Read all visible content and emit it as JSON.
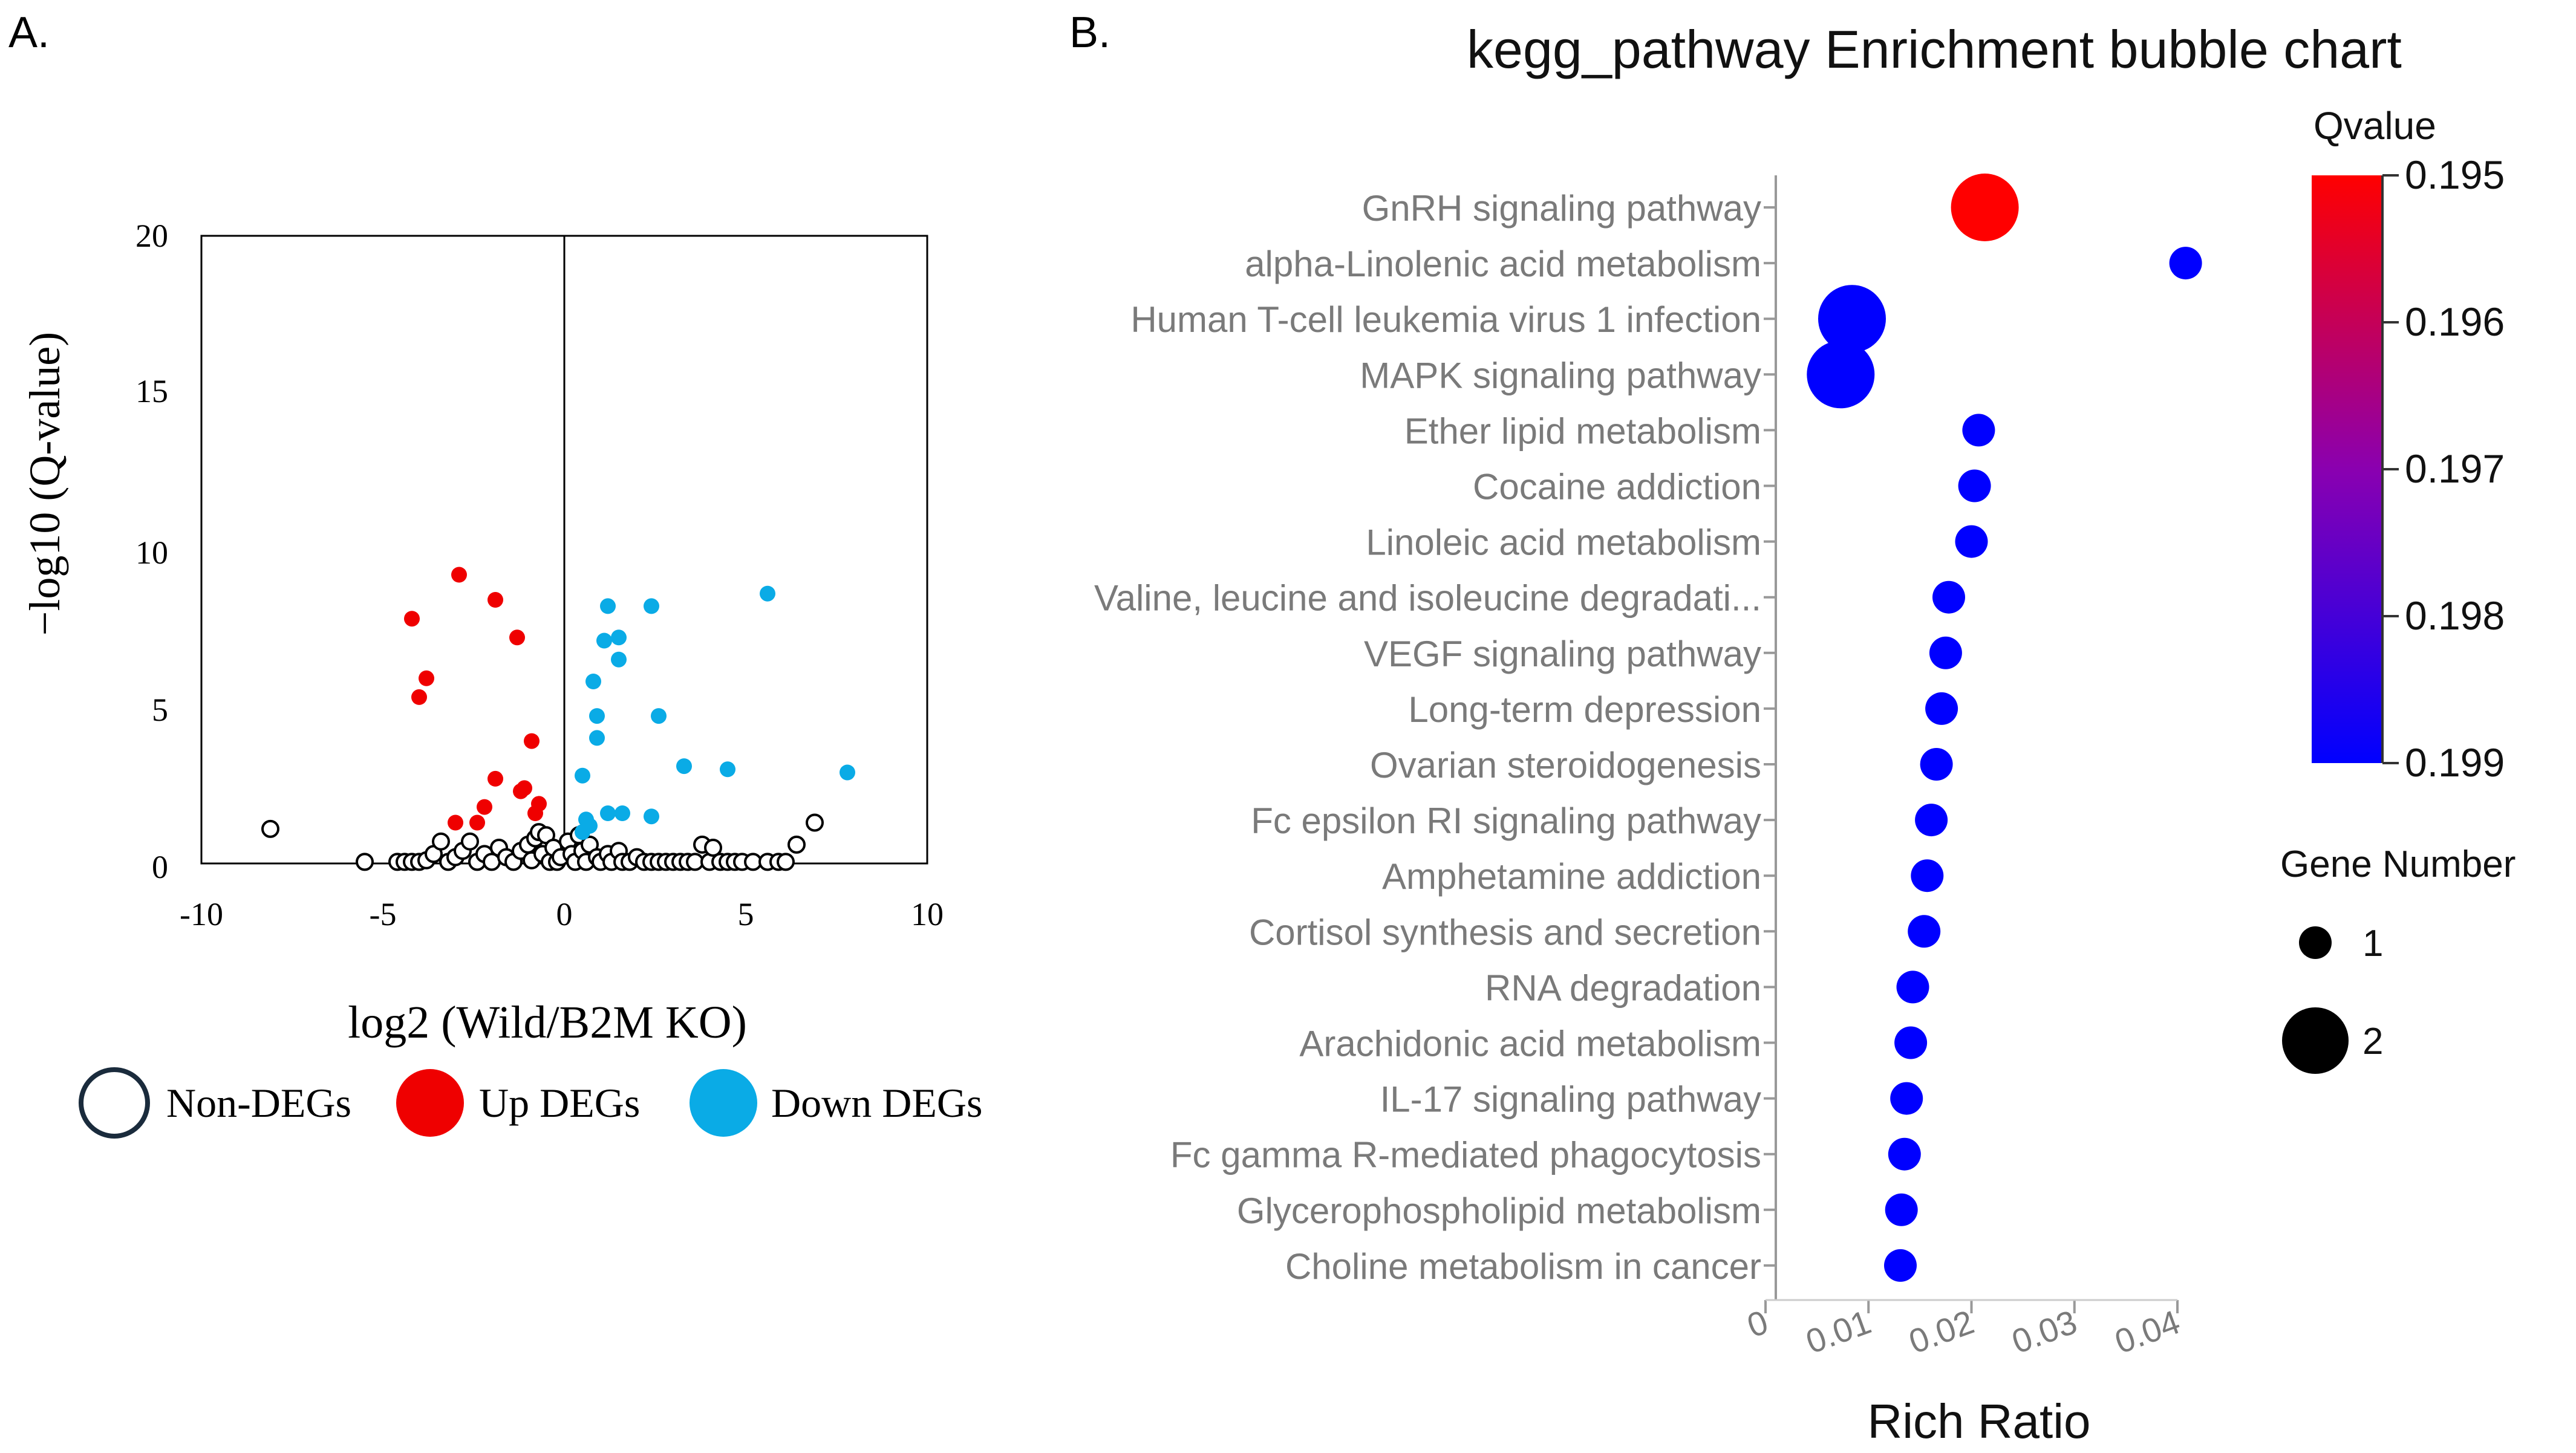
{
  "chart_data": [
    {
      "panel_label": "A.",
      "type": "scatter",
      "title": "",
      "xlabel": "log2 (Wild/B2M KO)",
      "ylabel": "−log10 (Q-value)",
      "xlim": [
        -10,
        10
      ],
      "ylim": [
        0,
        20
      ],
      "xticks": [
        "-10",
        "-5",
        "0",
        "5",
        "10"
      ],
      "yticks": [
        "0",
        "5",
        "10",
        "15",
        "20"
      ],
      "colors": {
        "up": "#ef0000",
        "down": "#0aabe6",
        "non": "#000000"
      },
      "legend": [
        "Non-DEGs",
        "Up DEGs",
        "Down DEGs"
      ],
      "series": [
        {
          "name": "Up DEGs",
          "points": [
            [
              -2.9,
              9.2
            ],
            [
              -1.9,
              8.4
            ],
            [
              -4.2,
              7.8
            ],
            [
              -1.3,
              7.2
            ],
            [
              -3.8,
              5.9
            ],
            [
              -4.0,
              5.3
            ],
            [
              -0.9,
              3.9
            ],
            [
              -1.9,
              2.7
            ],
            [
              -1.1,
              2.4
            ],
            [
              -1.2,
              2.3
            ],
            [
              -0.7,
              1.9
            ],
            [
              -2.2,
              1.8
            ],
            [
              -0.8,
              1.6
            ],
            [
              -3.0,
              1.3
            ],
            [
              -2.4,
              1.3
            ]
          ]
        },
        {
          "name": "Down DEGs",
          "points": [
            [
              5.6,
              8.6
            ],
            [
              1.2,
              8.2
            ],
            [
              2.4,
              8.2
            ],
            [
              1.5,
              7.2
            ],
            [
              1.1,
              7.1
            ],
            [
              1.5,
              6.5
            ],
            [
              0.8,
              5.8
            ],
            [
              2.6,
              4.7
            ],
            [
              0.9,
              4.7
            ],
            [
              0.9,
              4.0
            ],
            [
              3.3,
              3.1
            ],
            [
              4.5,
              3.0
            ],
            [
              7.8,
              2.9
            ],
            [
              0.5,
              2.8
            ],
            [
              1.2,
              1.6
            ],
            [
              1.6,
              1.6
            ],
            [
              2.4,
              1.5
            ],
            [
              0.6,
              1.4
            ],
            [
              0.7,
              1.2
            ],
            [
              0.5,
              1.0
            ]
          ]
        },
        {
          "name": "Non-DEGs",
          "points": [
            [
              -8.1,
              1.1
            ],
            [
              6.9,
              1.3
            ],
            [
              6.4,
              0.6
            ],
            [
              -5.5,
              0.05
            ],
            [
              -4.6,
              0.05
            ],
            [
              -4.4,
              0.05
            ],
            [
              -4.2,
              0.05
            ],
            [
              -4.0,
              0.05
            ],
            [
              -3.8,
              0.1
            ],
            [
              -3.6,
              0.3
            ],
            [
              -3.4,
              0.7
            ],
            [
              -3.2,
              0.05
            ],
            [
              -3.0,
              0.2
            ],
            [
              -2.8,
              0.4
            ],
            [
              -2.6,
              0.7
            ],
            [
              -2.4,
              0.05
            ],
            [
              -2.2,
              0.3
            ],
            [
              -2.0,
              0.05
            ],
            [
              -1.8,
              0.5
            ],
            [
              -1.6,
              0.2
            ],
            [
              -1.4,
              0.05
            ],
            [
              -1.2,
              0.4
            ],
            [
              -1.0,
              0.6
            ],
            [
              -0.9,
              0.1
            ],
            [
              -0.8,
              0.8
            ],
            [
              -0.7,
              1.0
            ],
            [
              -0.6,
              0.3
            ],
            [
              -0.5,
              0.9
            ],
            [
              -0.4,
              0.05
            ],
            [
              -0.3,
              0.5
            ],
            [
              -0.2,
              0.05
            ],
            [
              -0.1,
              0.2
            ],
            [
              0.1,
              0.7
            ],
            [
              0.2,
              0.3
            ],
            [
              0.3,
              0.05
            ],
            [
              0.4,
              0.9
            ],
            [
              0.5,
              0.4
            ],
            [
              0.6,
              0.05
            ],
            [
              0.7,
              0.6
            ],
            [
              0.9,
              0.2
            ],
            [
              1.0,
              0.05
            ],
            [
              1.2,
              0.3
            ],
            [
              1.3,
              0.05
            ],
            [
              1.5,
              0.4
            ],
            [
              1.6,
              0.05
            ],
            [
              1.8,
              0.05
            ],
            [
              2.0,
              0.2
            ],
            [
              2.2,
              0.05
            ],
            [
              2.4,
              0.05
            ],
            [
              2.6,
              0.05
            ],
            [
              2.8,
              0.05
            ],
            [
              3.0,
              0.05
            ],
            [
              3.2,
              0.05
            ],
            [
              3.4,
              0.05
            ],
            [
              3.6,
              0.05
            ],
            [
              3.8,
              0.6
            ],
            [
              4.0,
              0.05
            ],
            [
              4.1,
              0.5
            ],
            [
              4.3,
              0.05
            ],
            [
              4.5,
              0.05
            ],
            [
              4.7,
              0.05
            ],
            [
              4.9,
              0.05
            ],
            [
              5.2,
              0.05
            ],
            [
              5.6,
              0.05
            ],
            [
              5.9,
              0.05
            ],
            [
              6.1,
              0.05
            ]
          ]
        }
      ]
    },
    {
      "panel_label": "B.",
      "type": "scatter",
      "subtype": "bubble",
      "title": "kegg_pathway Enrichment bubble chart",
      "xlabel": "Rich Ratio",
      "ylabel": "",
      "xlim": [
        0,
        0.04
      ],
      "xticks": [
        "0",
        "0.01",
        "0.02",
        "0.03",
        "0.04"
      ],
      "categories": [
        "GnRH signaling pathway",
        "alpha-Linolenic acid metabolism",
        "Human T-cell leukemia virus 1 infection",
        "MAPK signaling pathway",
        "Ether lipid metabolism",
        "Cocaine addiction",
        "Linoleic acid metabolism",
        "Valine, leucine and isoleucine degradati...",
        "VEGF signaling pathway",
        "Long-term depression",
        "Ovarian steroidogenesis",
        "Fc epsilon RI signaling pathway",
        "Amphetamine addiction",
        "Cortisol synthesis and secretion",
        "RNA degradation",
        "Arachidonic acid metabolism",
        "IL-17 signaling pathway",
        "Fc gamma R-mediated phagocytosis",
        "Glycerophospholipid metabolism",
        "Choline metabolism in cancer"
      ],
      "rich_ratio": [
        0.0213,
        0.0408,
        0.0084,
        0.0073,
        0.0207,
        0.0203,
        0.02,
        0.0178,
        0.0175,
        0.0171,
        0.0166,
        0.0161,
        0.0157,
        0.0154,
        0.0143,
        0.0141,
        0.0137,
        0.0135,
        0.0132,
        0.0131
      ],
      "gene_number": [
        2,
        1,
        2,
        2,
        1,
        1,
        1,
        1,
        1,
        1,
        1,
        1,
        1,
        1,
        1,
        1,
        1,
        1,
        1,
        1
      ],
      "qvalue": [
        0.195,
        0.199,
        0.199,
        0.199,
        0.199,
        0.199,
        0.199,
        0.199,
        0.199,
        0.199,
        0.199,
        0.199,
        0.199,
        0.199,
        0.199,
        0.199,
        0.199,
        0.199,
        0.199,
        0.199
      ],
      "colorbar": {
        "title": "Qvalue",
        "ticks": [
          "0.195",
          "0.196",
          "0.197",
          "0.198",
          "0.199"
        ],
        "range": [
          0.195,
          0.199
        ],
        "low_color": "#ff0000",
        "high_color": "#0000ff"
      },
      "size_legend": {
        "title": "Gene Number",
        "entries": [
          "1",
          "2"
        ]
      }
    }
  ]
}
